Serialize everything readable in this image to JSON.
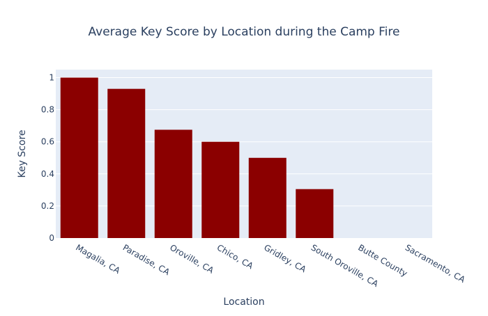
{
  "chart_data": {
    "type": "bar",
    "title": "Average Key Score by Location during the Camp Fire",
    "xlabel": "Location",
    "ylabel": "Key Score",
    "categories": [
      "Magalia, CA",
      "Paradise, CA",
      "Oroville, CA",
      "Chico, CA",
      "Gridley, CA",
      "South Oroville, CA",
      "Butte County",
      "Sacramento, CA"
    ],
    "values": [
      1.0,
      0.93,
      0.675,
      0.6,
      0.5,
      0.305,
      0.0,
      0.0
    ],
    "ylim": [
      0,
      1.05
    ],
    "yticks": [
      0,
      0.2,
      0.4,
      0.6,
      0.8,
      1
    ],
    "ytick_labels": [
      "0",
      "0.2",
      "0.4",
      "0.6",
      "0.8",
      "1"
    ],
    "grid": true,
    "colors": {
      "bar": "#8b0000",
      "plot_bg": "#e5ecf6",
      "grid": "#ffffff",
      "text": "#2a3f5f"
    }
  }
}
